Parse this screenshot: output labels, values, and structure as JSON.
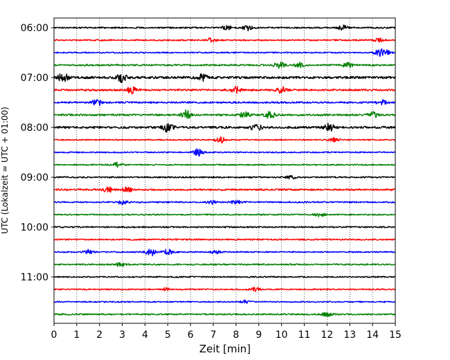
{
  "chart_data": {
    "type": "line",
    "subtype": "seismogram-helicorder",
    "xlabel": "Zeit  [min]",
    "ylabel": "UTC (Lokalzeit = UTC + 01:00)",
    "xlim": [
      0,
      15
    ],
    "x_ticks": [
      "0",
      "1",
      "2",
      "3",
      "4",
      "5",
      "6",
      "7",
      "8",
      "9",
      "10",
      "11",
      "12",
      "13",
      "14",
      "15"
    ],
    "y_tick_labels": [
      "06:00",
      "07:00",
      "08:00",
      "09:00",
      "10:00",
      "11:00"
    ],
    "y_tick_rows": [
      0,
      4,
      8,
      12,
      16,
      20
    ],
    "grid": "vertical dotted lines at each minute",
    "color_cycle": [
      "#000000",
      "#ff0000",
      "#0000ff",
      "#008000"
    ],
    "traces": [
      {
        "start": "06:00",
        "color": "#000000",
        "amplitude": 0.45,
        "bursts": [
          [
            7.6,
            1.0
          ],
          [
            8.5,
            1.5
          ],
          [
            12.7,
            1.3
          ]
        ]
      },
      {
        "start": "06:15",
        "color": "#ff0000",
        "amplitude": 0.45,
        "bursts": [
          [
            6.9,
            1.0
          ],
          [
            14.3,
            1.0
          ]
        ]
      },
      {
        "start": "06:30",
        "color": "#0000ff",
        "amplitude": 0.4,
        "bursts": [
          [
            14.3,
            2.2
          ],
          [
            14.6,
            1.6
          ]
        ]
      },
      {
        "start": "06:45",
        "color": "#008000",
        "amplitude": 0.5,
        "bursts": [
          [
            9.9,
            2.0
          ],
          [
            10.8,
            1.2
          ],
          [
            12.9,
            1.3
          ]
        ]
      },
      {
        "start": "07:00",
        "color": "#000000",
        "amplitude": 0.75,
        "bursts": [
          [
            0.4,
            1.6
          ],
          [
            3.0,
            1.5
          ],
          [
            6.5,
            1.2
          ]
        ]
      },
      {
        "start": "07:15",
        "color": "#ff0000",
        "amplitude": 0.6,
        "bursts": [
          [
            3.4,
            1.3
          ],
          [
            8.0,
            1.2
          ],
          [
            10.0,
            1.2
          ]
        ]
      },
      {
        "start": "07:30",
        "color": "#0000ff",
        "amplitude": 0.55,
        "bursts": [
          [
            1.9,
            1.4
          ],
          [
            14.4,
            1.0
          ]
        ]
      },
      {
        "start": "07:45",
        "color": "#008000",
        "amplitude": 0.6,
        "bursts": [
          [
            5.8,
            1.8
          ],
          [
            8.4,
            1.3
          ],
          [
            9.5,
            1.4
          ],
          [
            14.0,
            1.2
          ]
        ]
      },
      {
        "start": "08:00",
        "color": "#000000",
        "amplitude": 0.7,
        "bursts": [
          [
            5.0,
            1.6
          ],
          [
            8.9,
            1.3
          ],
          [
            12.1,
            1.3
          ]
        ]
      },
      {
        "start": "08:15",
        "color": "#ff0000",
        "amplitude": 0.4,
        "bursts": [
          [
            7.3,
            2.0
          ],
          [
            12.3,
            1.3
          ]
        ]
      },
      {
        "start": "08:30",
        "color": "#0000ff",
        "amplitude": 0.4,
        "bursts": [
          [
            6.35,
            2.4
          ]
        ]
      },
      {
        "start": "08:45",
        "color": "#008000",
        "amplitude": 0.4,
        "bursts": [
          [
            2.8,
            1.4
          ]
        ]
      },
      {
        "start": "09:00",
        "color": "#000000",
        "amplitude": 0.45,
        "bursts": [
          [
            10.4,
            1.0
          ]
        ]
      },
      {
        "start": "09:15",
        "color": "#ff0000",
        "amplitude": 0.55,
        "bursts": [
          [
            2.4,
            1.2
          ],
          [
            3.2,
            1.2
          ]
        ]
      },
      {
        "start": "09:30",
        "color": "#0000ff",
        "amplitude": 0.45,
        "bursts": [
          [
            3.0,
            1.2
          ],
          [
            6.9,
            1.0
          ],
          [
            8.0,
            1.2
          ]
        ]
      },
      {
        "start": "09:45",
        "color": "#008000",
        "amplitude": 0.4,
        "bursts": [
          [
            11.7,
            1.2
          ]
        ]
      },
      {
        "start": "10:00",
        "color": "#000000",
        "amplitude": 0.45,
        "bursts": []
      },
      {
        "start": "10:15",
        "color": "#ff0000",
        "amplitude": 0.45,
        "bursts": []
      },
      {
        "start": "10:30",
        "color": "#0000ff",
        "amplitude": 0.4,
        "bursts": [
          [
            1.5,
            1.4
          ],
          [
            4.25,
            2.4
          ],
          [
            5.0,
            1.6
          ],
          [
            7.1,
            1.0
          ]
        ]
      },
      {
        "start": "10:45",
        "color": "#008000",
        "amplitude": 0.45,
        "bursts": [
          [
            2.9,
            1.0
          ]
        ]
      },
      {
        "start": "11:00",
        "color": "#000000",
        "amplitude": 0.4,
        "bursts": []
      },
      {
        "start": "11:15",
        "color": "#ff0000",
        "amplitude": 0.4,
        "bursts": [
          [
            4.9,
            1.0
          ],
          [
            8.85,
            1.3
          ]
        ]
      },
      {
        "start": "11:30",
        "color": "#0000ff",
        "amplitude": 0.4,
        "bursts": [
          [
            8.4,
            1.0
          ]
        ]
      },
      {
        "start": "11:45",
        "color": "#008000",
        "amplitude": 0.45,
        "bursts": [
          [
            12.0,
            1.0
          ]
        ]
      }
    ]
  }
}
